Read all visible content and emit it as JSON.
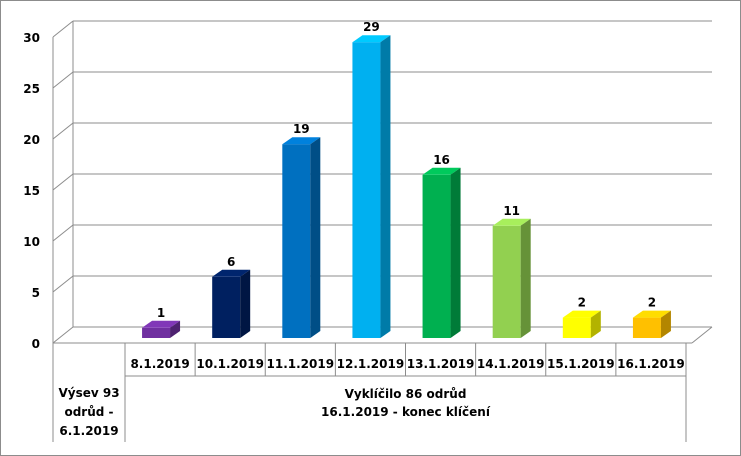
{
  "chart_data": {
    "type": "bar",
    "categories": [
      "8.1.2019",
      "10.1.2019",
      "11.1.2019",
      "12.1.2019",
      "13.1.2019",
      "14.1.2019",
      "15.1.2019",
      "16.1.2019"
    ],
    "values": [
      1,
      6,
      19,
      29,
      16,
      11,
      2,
      2
    ],
    "colors": [
      "#7030a0",
      "#002060",
      "#0070c0",
      "#00b0f0",
      "#00b050",
      "#92d050",
      "#ffff00",
      "#ffc000"
    ],
    "ylim": [
      0,
      30
    ],
    "yticks": [
      0,
      5,
      10,
      15,
      20,
      25,
      30
    ],
    "grid": true,
    "data_labels": true,
    "group_labels": {
      "first": [
        "Výsev 93",
        "odrůd -",
        "6.1.2019"
      ],
      "second": [
        "Vyklíčilo 86 odrůd",
        "16.1.2019 - konec klíčení"
      ]
    }
  }
}
